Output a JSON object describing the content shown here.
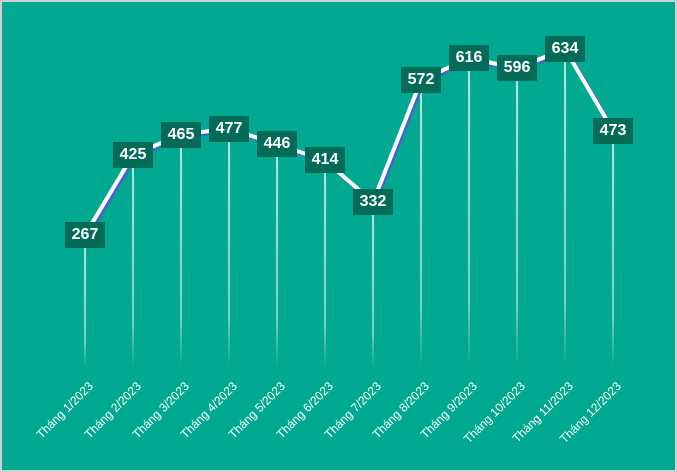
{
  "chart_data": {
    "type": "line",
    "title": "",
    "xlabel": "",
    "ylabel": "",
    "categories": [
      "Tháng 1/2023",
      "Tháng 2/2023",
      "Tháng 3/2023",
      "Tháng 4/2023",
      "Tháng 5/2023",
      "Tháng 6/2023",
      "Tháng 7/2023",
      "Tháng 8/2023",
      "Tháng 9/2023",
      "Tháng 10/2023",
      "Tháng 11/2023",
      "Tháng 12/2023"
    ],
    "series": [
      {
        "name": "",
        "values": [
          267,
          425,
          465,
          477,
          446,
          414,
          332,
          572,
          616,
          596,
          634,
          473
        ]
      }
    ],
    "data_labels": true,
    "drop_lines": true,
    "grid": false,
    "legend": "none",
    "y_axis_visible": false
  },
  "colors": {
    "background": "#00a98f",
    "line": "#ffffff",
    "line_shadow": "#4a63c8",
    "label_box": "#036b58",
    "label_text": "#ffffff",
    "drop_line": "#ffffff"
  }
}
